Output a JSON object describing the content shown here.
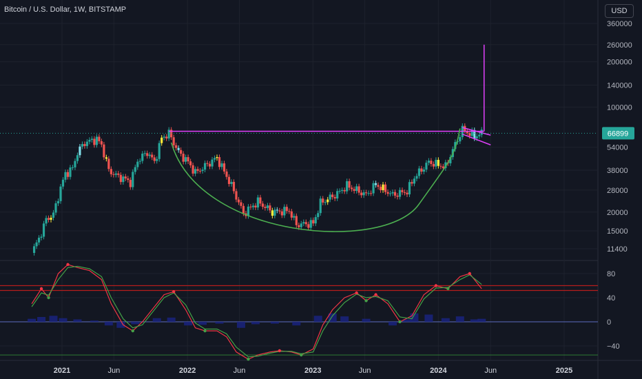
{
  "header": {
    "symbol_title": "Bitcoin / U.S. Dollar, 1W, BITSTAMP",
    "currency_button": "USD"
  },
  "price_badge": "66899",
  "colors": {
    "background": "#131722",
    "up_candle": "#26a69a",
    "down_candle": "#ef5350",
    "highlight_up": "#ffeb3b",
    "highlight_down": "#80deea",
    "cup_curve": "#4caf50",
    "channel_lines": "#e040fb",
    "badge": "#26a69a",
    "oscillator_fast": "#f23645",
    "oscillator_slow": "#43a047",
    "momentum_hist": "#1a237e"
  },
  "chart_data": [
    {
      "type": "candlestick",
      "title": "Bitcoin / U.S. Dollar, 1W, BITSTAMP",
      "yscale": "log",
      "y_ticks": [
        11400,
        15000,
        20000,
        28000,
        38000,
        54000,
        100000,
        140000,
        200000,
        260000,
        360000
      ],
      "x_ticks": [
        "2021",
        "Jun",
        "2022",
        "Jun",
        "2023",
        "Jun",
        "2024",
        "Jun",
        "2025"
      ],
      "last_price": 66899,
      "price_series": [
        [
          "2020-10-05",
          10700
        ],
        [
          "2020-10-26",
          13300
        ],
        [
          "2020-11-16",
          17800
        ],
        [
          "2020-12-07",
          19300
        ],
        [
          "2020-12-28",
          29000
        ],
        [
          "2021-01-11",
          36000
        ],
        [
          "2021-02-01",
          39000
        ],
        [
          "2021-02-15",
          50000
        ],
        [
          "2021-03-08",
          58000
        ],
        [
          "2021-04-12",
          61000
        ],
        [
          "2021-04-26",
          56000
        ],
        [
          "2021-05-17",
          38000
        ],
        [
          "2021-06-07",
          35000
        ],
        [
          "2021-07-05",
          33000
        ],
        [
          "2021-07-19",
          31500
        ],
        [
          "2021-08-09",
          44000
        ],
        [
          "2021-09-06",
          50000
        ],
        [
          "2021-09-27",
          43000
        ],
        [
          "2021-10-18",
          62000
        ],
        [
          "2021-11-08",
          67000
        ],
        [
          "2021-12-06",
          50000
        ],
        [
          "2022-01-03",
          43000
        ],
        [
          "2022-01-24",
          36500
        ],
        [
          "2022-03-28",
          46000
        ],
        [
          "2022-05-09",
          30000
        ],
        [
          "2022-06-13",
          19500
        ],
        [
          "2022-07-25",
          23500
        ],
        [
          "2022-09-05",
          20000
        ],
        [
          "2022-10-24",
          20500
        ],
        [
          "2022-11-14",
          16500
        ],
        [
          "2023-01-02",
          16800
        ],
        [
          "2023-01-23",
          23000
        ],
        [
          "2023-03-13",
          26500
        ],
        [
          "2023-04-10",
          30000
        ],
        [
          "2023-06-05",
          26000
        ],
        [
          "2023-07-03",
          30500
        ],
        [
          "2023-08-21",
          26000
        ],
        [
          "2023-10-02",
          27500
        ],
        [
          "2023-10-23",
          34000
        ],
        [
          "2023-12-04",
          43000
        ],
        [
          "2024-01-22",
          40000
        ],
        [
          "2024-02-12",
          52000
        ],
        [
          "2024-03-11",
          71000
        ],
        [
          "2024-04-15",
          64000
        ],
        [
          "2024-05-06",
          66899
        ]
      ],
      "resistance_level": 69000,
      "cup_bottom": 16000,
      "channel": {
        "upper": [
          [
            "2024-03-11",
            73000
          ],
          [
            "2024-06-01",
            65000
          ]
        ],
        "lower": [
          [
            "2024-03-11",
            66000
          ],
          [
            "2024-06-01",
            56000
          ]
        ]
      },
      "target_line": {
        "date": "2024-05-13",
        "from": 69000,
        "to": 260000
      }
    },
    {
      "type": "line",
      "title": "",
      "y_ticks": [
        -40,
        0,
        40,
        80
      ],
      "levels": [
        60,
        52,
        0,
        -55
      ],
      "series": [
        {
          "values": [
            [
              "2020-10-05",
              30
            ],
            [
              "2020-11-02",
              55
            ],
            [
              "2020-11-23",
              40
            ],
            [
              "2020-12-21",
              80
            ],
            [
              "2021-01-18",
              95
            ],
            [
              "2021-02-15",
              90
            ],
            [
              "2021-03-22",
              85
            ],
            [
              "2021-04-26",
              70
            ],
            [
              "2021-05-24",
              30
            ],
            [
              "2021-06-28",
              -5
            ],
            [
              "2021-07-26",
              -15
            ],
            [
              "2021-08-23",
              0
            ],
            [
              "2021-09-20",
              20
            ],
            [
              "2021-10-25",
              45
            ],
            [
              "2021-11-22",
              50
            ],
            [
              "2021-12-27",
              20
            ],
            [
              "2022-01-24",
              -10
            ],
            [
              "2022-02-21",
              -15
            ],
            [
              "2022-03-28",
              -15
            ],
            [
              "2022-04-25",
              -25
            ],
            [
              "2022-05-23",
              -50
            ],
            [
              "2022-06-27",
              -62
            ],
            [
              "2022-07-25",
              -55
            ],
            [
              "2022-08-29",
              -50
            ],
            [
              "2022-09-26",
              -48
            ],
            [
              "2022-10-31",
              -50
            ],
            [
              "2022-11-28",
              -55
            ],
            [
              "2023-01-02",
              -45
            ],
            [
              "2023-01-30",
              -5
            ],
            [
              "2023-02-27",
              20
            ],
            [
              "2023-04-03",
              40
            ],
            [
              "2023-05-08",
              48
            ],
            [
              "2023-06-05",
              35
            ],
            [
              "2023-07-03",
              45
            ],
            [
              "2023-08-07",
              30
            ],
            [
              "2023-09-11",
              0
            ],
            [
              "2023-10-16",
              10
            ],
            [
              "2023-11-20",
              45
            ],
            [
              "2023-12-25",
              60
            ],
            [
              "2024-01-29",
              55
            ],
            [
              "2024-03-04",
              75
            ],
            [
              "2024-04-01",
              80
            ],
            [
              "2024-05-06",
              55
            ]
          ]
        },
        {
          "values": [
            [
              "2020-10-05",
              25
            ],
            [
              "2020-11-02",
              48
            ],
            [
              "2020-11-23",
              44
            ],
            [
              "2020-12-21",
              70
            ],
            [
              "2021-01-18",
              90
            ],
            [
              "2021-02-15",
              92
            ],
            [
              "2021-03-22",
              88
            ],
            [
              "2021-04-26",
              75
            ],
            [
              "2021-05-24",
              40
            ],
            [
              "2021-06-28",
              5
            ],
            [
              "2021-07-26",
              -10
            ],
            [
              "2021-08-23",
              -5
            ],
            [
              "2021-09-20",
              15
            ],
            [
              "2021-10-25",
              40
            ],
            [
              "2021-11-22",
              48
            ],
            [
              "2021-12-27",
              28
            ],
            [
              "2022-01-24",
              -2
            ],
            [
              "2022-02-21",
              -12
            ],
            [
              "2022-03-28",
              -12
            ],
            [
              "2022-04-25",
              -20
            ],
            [
              "2022-05-23",
              -42
            ],
            [
              "2022-06-27",
              -58
            ],
            [
              "2022-07-25",
              -57
            ],
            [
              "2022-08-29",
              -52
            ],
            [
              "2022-09-26",
              -49
            ],
            [
              "2022-10-31",
              -49
            ],
            [
              "2022-11-28",
              -53
            ],
            [
              "2023-01-02",
              -50
            ],
            [
              "2023-01-30",
              -15
            ],
            [
              "2023-02-27",
              10
            ],
            [
              "2023-04-03",
              32
            ],
            [
              "2023-05-08",
              46
            ],
            [
              "2023-06-05",
              40
            ],
            [
              "2023-07-03",
              42
            ],
            [
              "2023-08-07",
              35
            ],
            [
              "2023-09-11",
              8
            ],
            [
              "2023-10-16",
              5
            ],
            [
              "2023-11-20",
              38
            ],
            [
              "2023-12-25",
              56
            ],
            [
              "2024-01-29",
              57
            ],
            [
              "2024-03-04",
              70
            ],
            [
              "2024-04-01",
              78
            ],
            [
              "2024-05-06",
              62
            ]
          ]
        }
      ],
      "histogram": [
        [
          "2020-10-05",
          5
        ],
        [
          "2020-11-02",
          8
        ],
        [
          "2020-12-07",
          10
        ],
        [
          "2021-01-04",
          6
        ],
        [
          "2021-02-15",
          4
        ],
        [
          "2021-04-05",
          2
        ],
        [
          "2021-05-17",
          -6
        ],
        [
          "2021-06-21",
          -10
        ],
        [
          "2021-08-02",
          -4
        ],
        [
          "2021-10-04",
          6
        ],
        [
          "2021-11-15",
          7
        ],
        [
          "2022-01-03",
          -6
        ],
        [
          "2022-02-14",
          -5
        ],
        [
          "2022-04-04",
          -3
        ],
        [
          "2022-06-06",
          -10
        ],
        [
          "2022-07-18",
          -4
        ],
        [
          "2022-09-12",
          -3
        ],
        [
          "2022-11-14",
          -6
        ],
        [
          "2023-01-16",
          10
        ],
        [
          "2023-02-27",
          14
        ],
        [
          "2023-04-03",
          9
        ],
        [
          "2023-06-05",
          5
        ],
        [
          "2023-08-21",
          -6
        ],
        [
          "2023-10-02",
          4
        ],
        [
          "2023-10-23",
          14
        ],
        [
          "2023-12-04",
          12
        ],
        [
          "2024-01-22",
          6
        ],
        [
          "2024-03-04",
          9
        ],
        [
          "2024-04-15",
          4
        ],
        [
          "2024-05-06",
          5
        ]
      ]
    }
  ]
}
